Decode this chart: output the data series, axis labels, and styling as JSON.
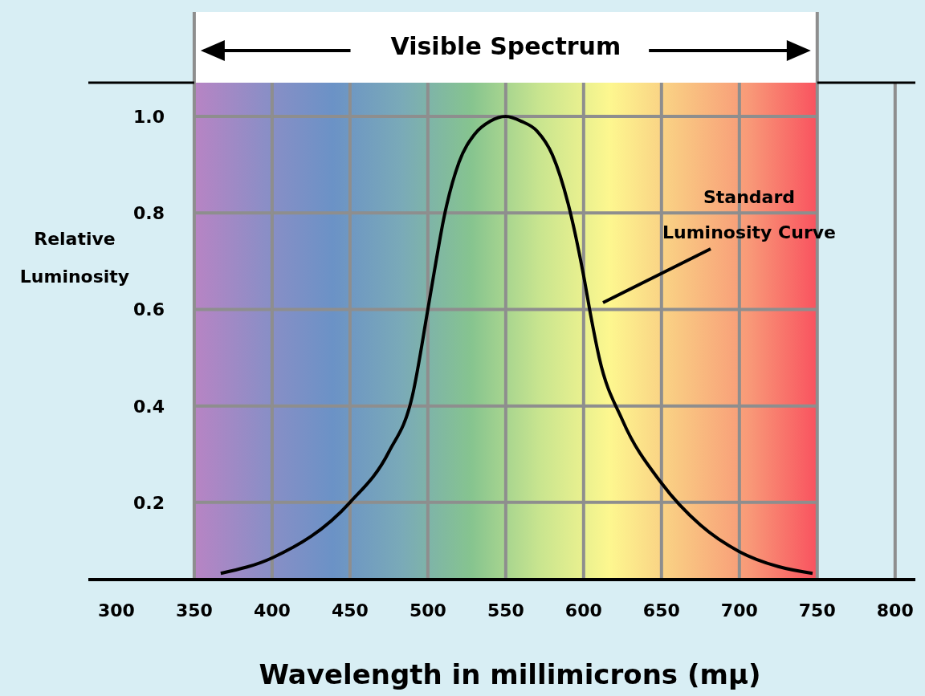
{
  "chart_data": {
    "type": "line",
    "xlabel": "Wavelength in millimicrons (mμ)",
    "ylabel": "Relative Luminosity",
    "x": [
      367,
      400,
      450,
      475,
      490,
      500,
      505,
      510,
      520,
      530,
      540,
      550,
      560,
      570,
      580,
      590,
      600,
      605,
      610,
      625,
      650,
      675,
      700,
      725,
      747
    ],
    "series": [
      {
        "color": "#000000",
        "values": [
          0.053,
          0.085,
          0.2,
          0.305,
          0.42,
          0.6,
          0.695,
          0.785,
          0.905,
          0.963,
          0.99,
          1.0,
          0.99,
          0.97,
          0.92,
          0.82,
          0.67,
          0.58,
          0.5,
          0.37,
          0.24,
          0.153,
          0.098,
          0.067,
          0.053
        ]
      }
    ],
    "xlim": [
      282,
      813
    ],
    "ylim": [
      0.04,
      1.07
    ],
    "xticks": [
      300,
      350,
      400,
      450,
      500,
      550,
      600,
      650,
      700,
      750,
      800
    ],
    "yticks": [
      0.2,
      0.4,
      0.6,
      0.8,
      {
        "value": 1,
        "label": "1.0"
      }
    ],
    "bands": [
      {
        "axis": "x",
        "from": 350,
        "to": 750,
        "label": "Visible Spectrum"
      }
    ],
    "annotations": [
      "Standard Luminosity Curve"
    ],
    "grid": true,
    "marker": "none",
    "line_style": "solid"
  }
}
